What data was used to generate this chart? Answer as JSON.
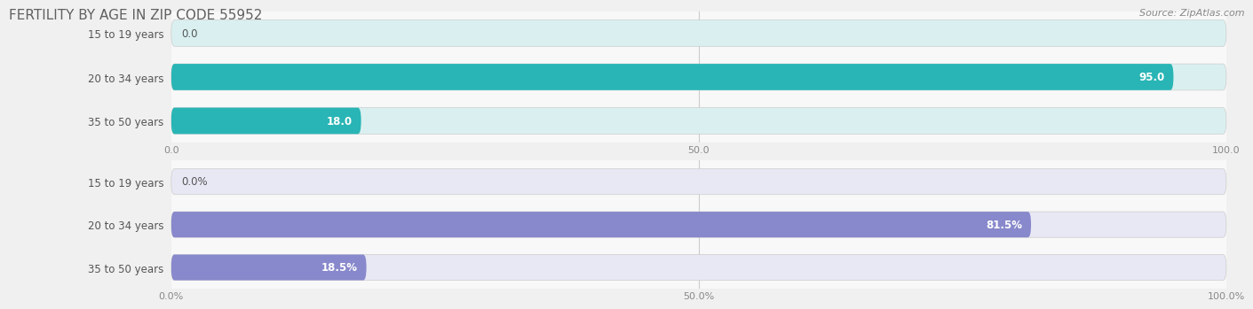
{
  "title": "FERTILITY BY AGE IN ZIP CODE 55952",
  "source": "Source: ZipAtlas.com",
  "top_chart": {
    "categories": [
      "15 to 19 years",
      "20 to 34 years",
      "35 to 50 years"
    ],
    "values": [
      0.0,
      95.0,
      18.0
    ],
    "xlim": [
      0,
      100
    ],
    "xticks": [
      0.0,
      50.0,
      100.0
    ],
    "xtick_labels": [
      "0.0",
      "50.0",
      "100.0"
    ],
    "bar_color_main": "#29b5b5",
    "bar_bg_color": "#daf0f0",
    "value_labels": [
      "0.0",
      "95.0",
      "18.0"
    ],
    "label_inside": [
      false,
      true,
      true
    ]
  },
  "bottom_chart": {
    "categories": [
      "15 to 19 years",
      "20 to 34 years",
      "35 to 50 years"
    ],
    "values": [
      0.0,
      81.5,
      18.5
    ],
    "xlim": [
      0,
      100
    ],
    "xticks": [
      0.0,
      50.0,
      100.0
    ],
    "xtick_labels": [
      "0.0%",
      "50.0%",
      "100.0%"
    ],
    "bar_color_main": "#8888cc",
    "bar_bg_color": "#e8e8f5",
    "value_labels": [
      "0.0%",
      "81.5%",
      "18.5%"
    ],
    "label_inside": [
      false,
      true,
      true
    ]
  },
  "fig_bg_color": "#f0f0f0",
  "chart_bg_color": "#f8f8f8",
  "title_fontsize": 11,
  "label_fontsize": 8.5,
  "source_fontsize": 8,
  "tick_fontsize": 8,
  "bar_height": 0.6,
  "separator_color": "#dddddd"
}
